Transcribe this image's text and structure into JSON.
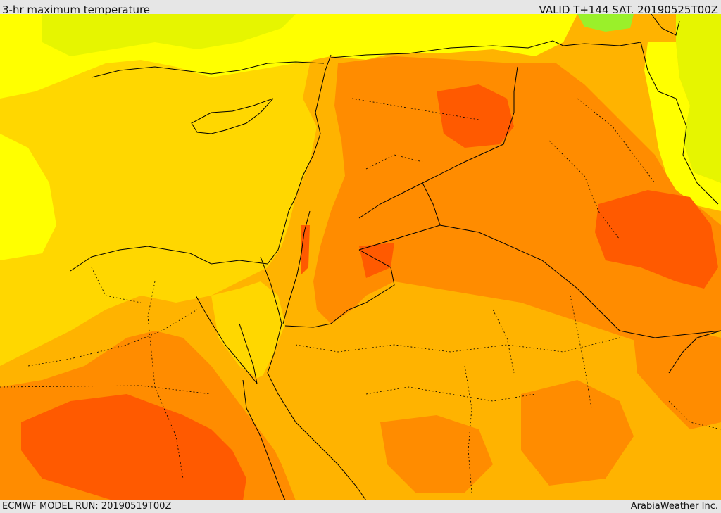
{
  "header": {
    "title": "3-hr maximum temperature",
    "valid_time": "VALID T+144 SAT. 20190525T00Z"
  },
  "footer": {
    "model_run": "ECMWF MODEL RUN: 20190519T00Z",
    "credit": "ArabiaWeather Inc."
  },
  "colors": {
    "cool_green": "#9af02a",
    "lime": "#e6f500",
    "yellow": "#ffff00",
    "yellow_orange": "#ffd700",
    "orange": "#ffb300",
    "dark_orange": "#ff8c00",
    "red_orange": "#ff5a00",
    "border_line": "#000000"
  }
}
